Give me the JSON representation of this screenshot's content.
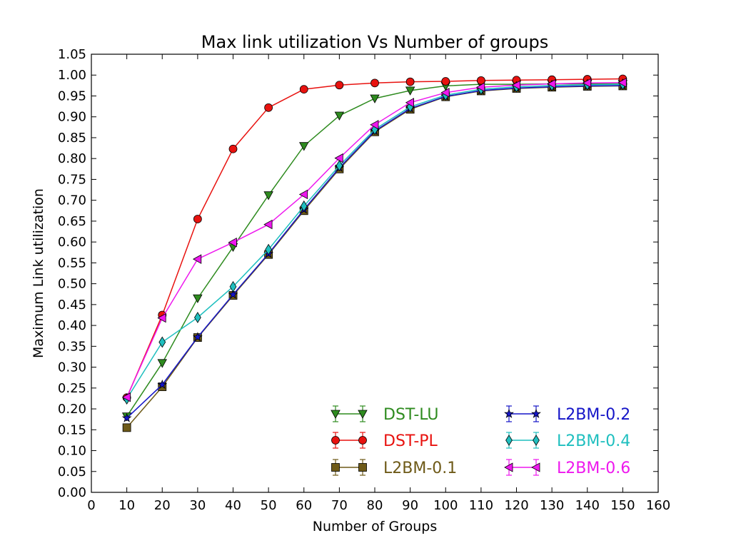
{
  "chart_data": {
    "type": "line",
    "title": "Max link utilization Vs Number of groups",
    "xlabel": "Number of Groups",
    "ylabel": "Maximum Link utilization",
    "xlim": [
      0,
      160
    ],
    "ylim": [
      0.0,
      1.05
    ],
    "xticks": [
      "0",
      "10",
      "20",
      "30",
      "40",
      "50",
      "60",
      "70",
      "80",
      "90",
      "100",
      "110",
      "120",
      "130",
      "140",
      "150",
      "160"
    ],
    "yticks": [
      "0.00",
      "0.05",
      "0.10",
      "0.15",
      "0.20",
      "0.25",
      "0.30",
      "0.35",
      "0.40",
      "0.45",
      "0.50",
      "0.55",
      "0.60",
      "0.65",
      "0.70",
      "0.75",
      "0.80",
      "0.85",
      "0.90",
      "0.95",
      "1.00",
      "1.05"
    ],
    "grid": false,
    "legend_position": "lower-right",
    "x": [
      10,
      20,
      30,
      40,
      50,
      60,
      70,
      80,
      90,
      100,
      110,
      120,
      130,
      140,
      150
    ],
    "series": [
      {
        "name": "DST-LU",
        "color": "#2e8b1f",
        "marker": "triangle-down",
        "values": [
          0.182,
          0.31,
          0.465,
          0.588,
          0.712,
          0.83,
          0.903,
          0.944,
          0.963,
          0.974,
          0.978,
          0.978,
          0.979,
          0.979,
          0.979
        ]
      },
      {
        "name": "DST-PL",
        "color": "#e8120f",
        "marker": "circle",
        "values": [
          0.227,
          0.425,
          0.655,
          0.823,
          0.922,
          0.966,
          0.976,
          0.981,
          0.984,
          0.985,
          0.987,
          0.988,
          0.989,
          0.99,
          0.991
        ]
      },
      {
        "name": "L2BM-0.1",
        "color": "#6e5a18",
        "marker": "square",
        "values": [
          0.155,
          0.253,
          0.371,
          0.472,
          0.57,
          0.675,
          0.775,
          0.864,
          0.918,
          0.948,
          0.962,
          0.968,
          0.971,
          0.973,
          0.974
        ]
      },
      {
        "name": "L2BM-0.2",
        "color": "#1515c8",
        "marker": "star",
        "values": [
          0.178,
          0.258,
          0.372,
          0.474,
          0.572,
          0.678,
          0.778,
          0.866,
          0.92,
          0.949,
          0.963,
          0.969,
          0.972,
          0.974,
          0.975
        ]
      },
      {
        "name": "L2BM-0.4",
        "color": "#1fbfbf",
        "marker": "diamond",
        "values": [
          0.224,
          0.36,
          0.419,
          0.493,
          0.582,
          0.686,
          0.783,
          0.87,
          0.924,
          0.952,
          0.966,
          0.972,
          0.975,
          0.977,
          0.978
        ]
      },
      {
        "name": "L2BM-0.6",
        "color": "#ee18ee",
        "marker": "triangle-left",
        "values": [
          0.228,
          0.418,
          0.559,
          0.599,
          0.642,
          0.714,
          0.801,
          0.881,
          0.934,
          0.958,
          0.971,
          0.976,
          0.979,
          0.981,
          0.982
        ]
      }
    ]
  }
}
